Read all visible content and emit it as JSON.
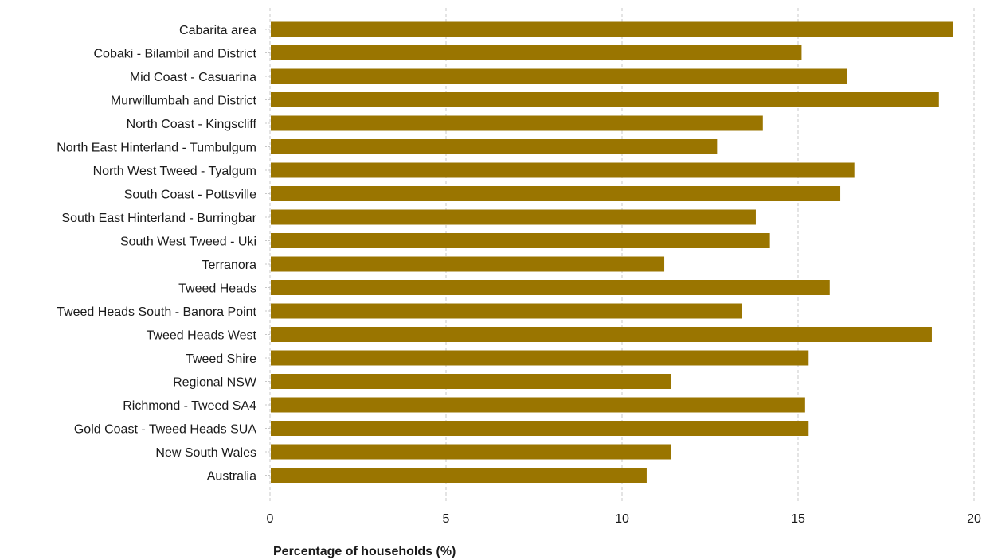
{
  "chart_data": {
    "type": "bar",
    "orientation": "horizontal",
    "title": "",
    "xlabel": "Percentage of households (%)",
    "ylabel": "",
    "xlim": [
      0,
      20
    ],
    "xticks": [
      0,
      5,
      10,
      15,
      20
    ],
    "grid": "vertical dashed",
    "bar_color": "#9a7500",
    "categories": [
      "Cabarita area",
      "Cobaki - Bilambil and District",
      "Mid Coast - Casuarina",
      "Murwillumbah and District",
      "North Coast - Kingscliff",
      "North East Hinterland - Tumbulgum",
      "North West Tweed - Tyalgum",
      "South Coast - Pottsville",
      "South East Hinterland - Burringbar",
      "South West Tweed - Uki",
      "Terranora",
      "Tweed Heads",
      "Tweed Heads South - Banora Point",
      "Tweed Heads West",
      "Tweed Shire",
      "Regional NSW",
      "Richmond - Tweed SA4",
      "Gold Coast - Tweed Heads SUA",
      "New South Wales",
      "Australia"
    ],
    "values": [
      19.4,
      15.1,
      16.4,
      19.0,
      14.0,
      12.7,
      16.6,
      16.2,
      13.8,
      14.2,
      11.2,
      15.9,
      13.4,
      18.8,
      15.3,
      11.4,
      15.2,
      15.3,
      11.4,
      10.7
    ]
  }
}
